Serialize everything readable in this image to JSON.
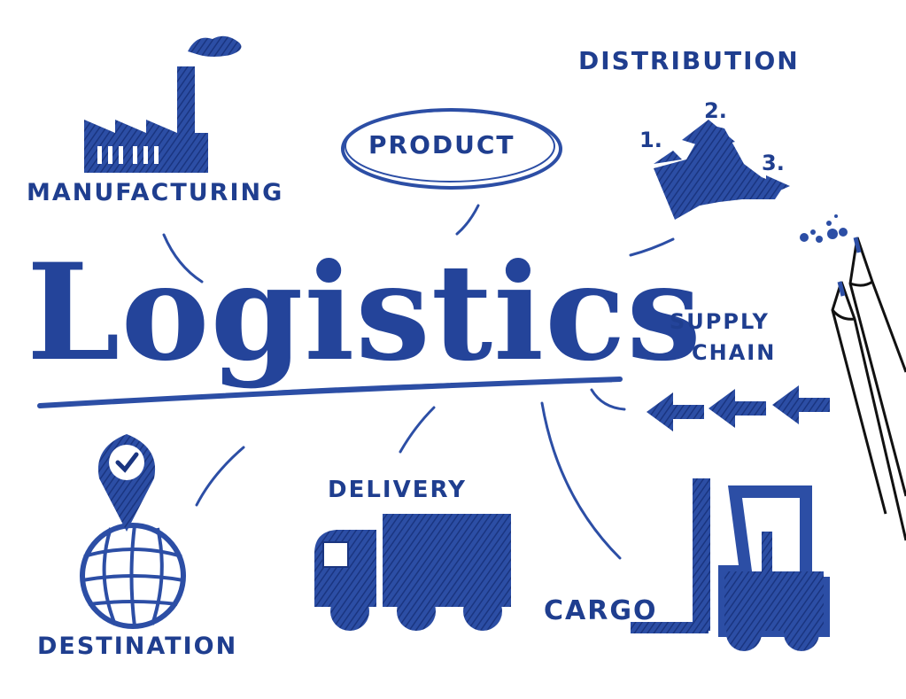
{
  "title": "Logistics",
  "nodes": {
    "manufacturing": "MANUFACTURING",
    "product": "PRODUCT",
    "distribution": "DISTRIBUTION",
    "supply_chain_line1": "SUPPLY",
    "supply_chain_line2": "CHAIN",
    "delivery": "DELIVERY",
    "cargo": "CARGO",
    "destination": "DESTINATION"
  },
  "distribution_steps": [
    "1.",
    "2.",
    "3."
  ],
  "icons": {
    "manufacturing": "factory-icon",
    "distribution": "split-arrows-icon",
    "supply_chain": "left-arrows-icon",
    "delivery": "truck-icon",
    "cargo": "forklift-icon",
    "destination": "globe-pin-icon",
    "decoration": "pens-icon"
  },
  "colors": {
    "ink": "#1f3e8f",
    "ink_light": "#3a5cb0",
    "background": "#ffffff"
  }
}
